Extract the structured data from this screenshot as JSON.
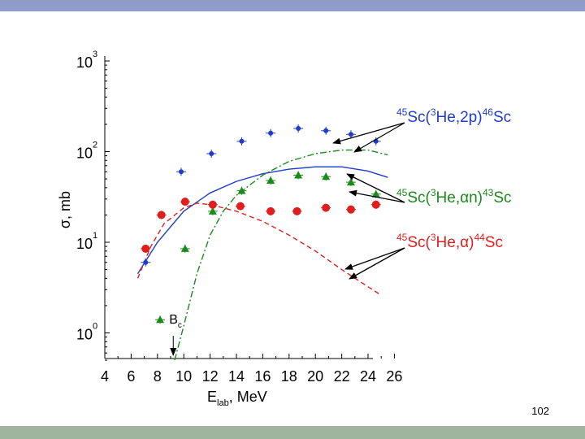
{
  "slide": {
    "page_number": "102"
  },
  "chart_data": {
    "type": "scatter",
    "x_axis": {
      "label": "E",
      "label_subscript": "lab",
      "label_suffix": ", MeV",
      "range": [
        4,
        27
      ],
      "ticks": [
        4,
        6,
        8,
        10,
        12,
        14,
        16,
        18,
        20,
        22,
        24,
        26
      ],
      "tick_labels": [
        "4",
        "6",
        "8",
        "10",
        "12",
        "14",
        "16",
        "18",
        "20",
        "22",
        "24",
        "26"
      ]
    },
    "y_axis": {
      "label": "σ, mb",
      "scale": "log",
      "range": [
        0.5,
        1000
      ],
      "ticks": [
        1,
        10,
        100,
        1000
      ],
      "tick_labels": [
        {
          "base": "10",
          "exp": "0"
        },
        {
          "base": "10",
          "exp": "1"
        },
        {
          "base": "10",
          "exp": "2"
        },
        {
          "base": "10",
          "exp": "3"
        }
      ]
    },
    "grid": false,
    "marker": {
      "text": "B",
      "subscript": "c",
      "x": 9.2
    },
    "series": [
      {
        "name": "45Sc(3He,2p)46Sc",
        "label_parts": [
          [
            "45",
            "sup"
          ],
          [
            "Sc(",
            "n"
          ],
          [
            "3",
            "sup"
          ],
          [
            "He,2p)",
            "n"
          ],
          [
            "46",
            "sup"
          ],
          [
            "Sc",
            "n"
          ]
        ],
        "color": "#1f3cc8",
        "marker": "small-circle",
        "points": [
          [
            7.1,
            6
          ],
          [
            9.8,
            60
          ],
          [
            12.1,
            95
          ],
          [
            14.4,
            130
          ],
          [
            16.6,
            160
          ],
          [
            18.7,
            180
          ],
          [
            20.8,
            170
          ],
          [
            22.7,
            155
          ],
          [
            24.6,
            130
          ]
        ],
        "fit": [
          [
            6.5,
            4.5
          ],
          [
            8,
            10
          ],
          [
            10,
            22
          ],
          [
            12,
            35
          ],
          [
            14,
            47
          ],
          [
            16,
            57
          ],
          [
            18,
            64
          ],
          [
            20,
            68
          ],
          [
            22,
            68
          ],
          [
            24,
            61
          ],
          [
            25.5,
            52
          ]
        ],
        "fit_style": "solid"
      },
      {
        "name": "45Sc(3He,αn)43Sc",
        "label_parts": [
          [
            "45",
            "sup"
          ],
          [
            "Sc(",
            "n"
          ],
          [
            "3",
            "sup"
          ],
          [
            "He,αn)",
            "n"
          ],
          [
            "43",
            "sup"
          ],
          [
            "Sc",
            "n"
          ]
        ],
        "color": "#1a8a1a",
        "marker": "triangle",
        "points": [
          [
            8.2,
            1.4
          ],
          [
            10.1,
            8.5
          ],
          [
            12.2,
            22
          ],
          [
            14.4,
            37
          ],
          [
            16.6,
            48
          ],
          [
            18.7,
            55
          ],
          [
            20.8,
            53
          ],
          [
            22.7,
            46
          ],
          [
            24.6,
            34
          ]
        ],
        "fit": [
          [
            9.3,
            0.5
          ],
          [
            10,
            1.2
          ],
          [
            11,
            4.5
          ],
          [
            12,
            12
          ],
          [
            13,
            22
          ],
          [
            14,
            33
          ],
          [
            16,
            55
          ],
          [
            18,
            78
          ],
          [
            20,
            95
          ],
          [
            22,
            104
          ],
          [
            24,
            104
          ],
          [
            25.5,
            92
          ]
        ],
        "fit_style": "dash-dot"
      },
      {
        "name": "45Sc(3He,α)44Sc",
        "label_parts": [
          [
            "45",
            "sup"
          ],
          [
            "Sc(",
            "n"
          ],
          [
            "3",
            "sup"
          ],
          [
            "He,α)",
            "n"
          ],
          [
            "44",
            "sup"
          ],
          [
            "Sc",
            "n"
          ]
        ],
        "color": "#e01e1e",
        "marker": "circle",
        "points": [
          [
            7.1,
            8.5
          ],
          [
            8.3,
            20
          ],
          [
            10.1,
            28
          ],
          [
            12.2,
            26
          ],
          [
            14.3,
            25
          ],
          [
            16.6,
            22
          ],
          [
            18.6,
            22
          ],
          [
            20.8,
            24
          ],
          [
            22.7,
            23
          ],
          [
            24.6,
            26
          ]
        ],
        "fit": [
          [
            6.5,
            4
          ],
          [
            7.5,
            9
          ],
          [
            8.5,
            16
          ],
          [
            10,
            24
          ],
          [
            11,
            27
          ],
          [
            12,
            26
          ],
          [
            14,
            22
          ],
          [
            16,
            17
          ],
          [
            18,
            12
          ],
          [
            20,
            8
          ],
          [
            22,
            5
          ],
          [
            23.5,
            3.6
          ],
          [
            25,
            2.6
          ]
        ],
        "fit_style": "dashed"
      }
    ]
  }
}
